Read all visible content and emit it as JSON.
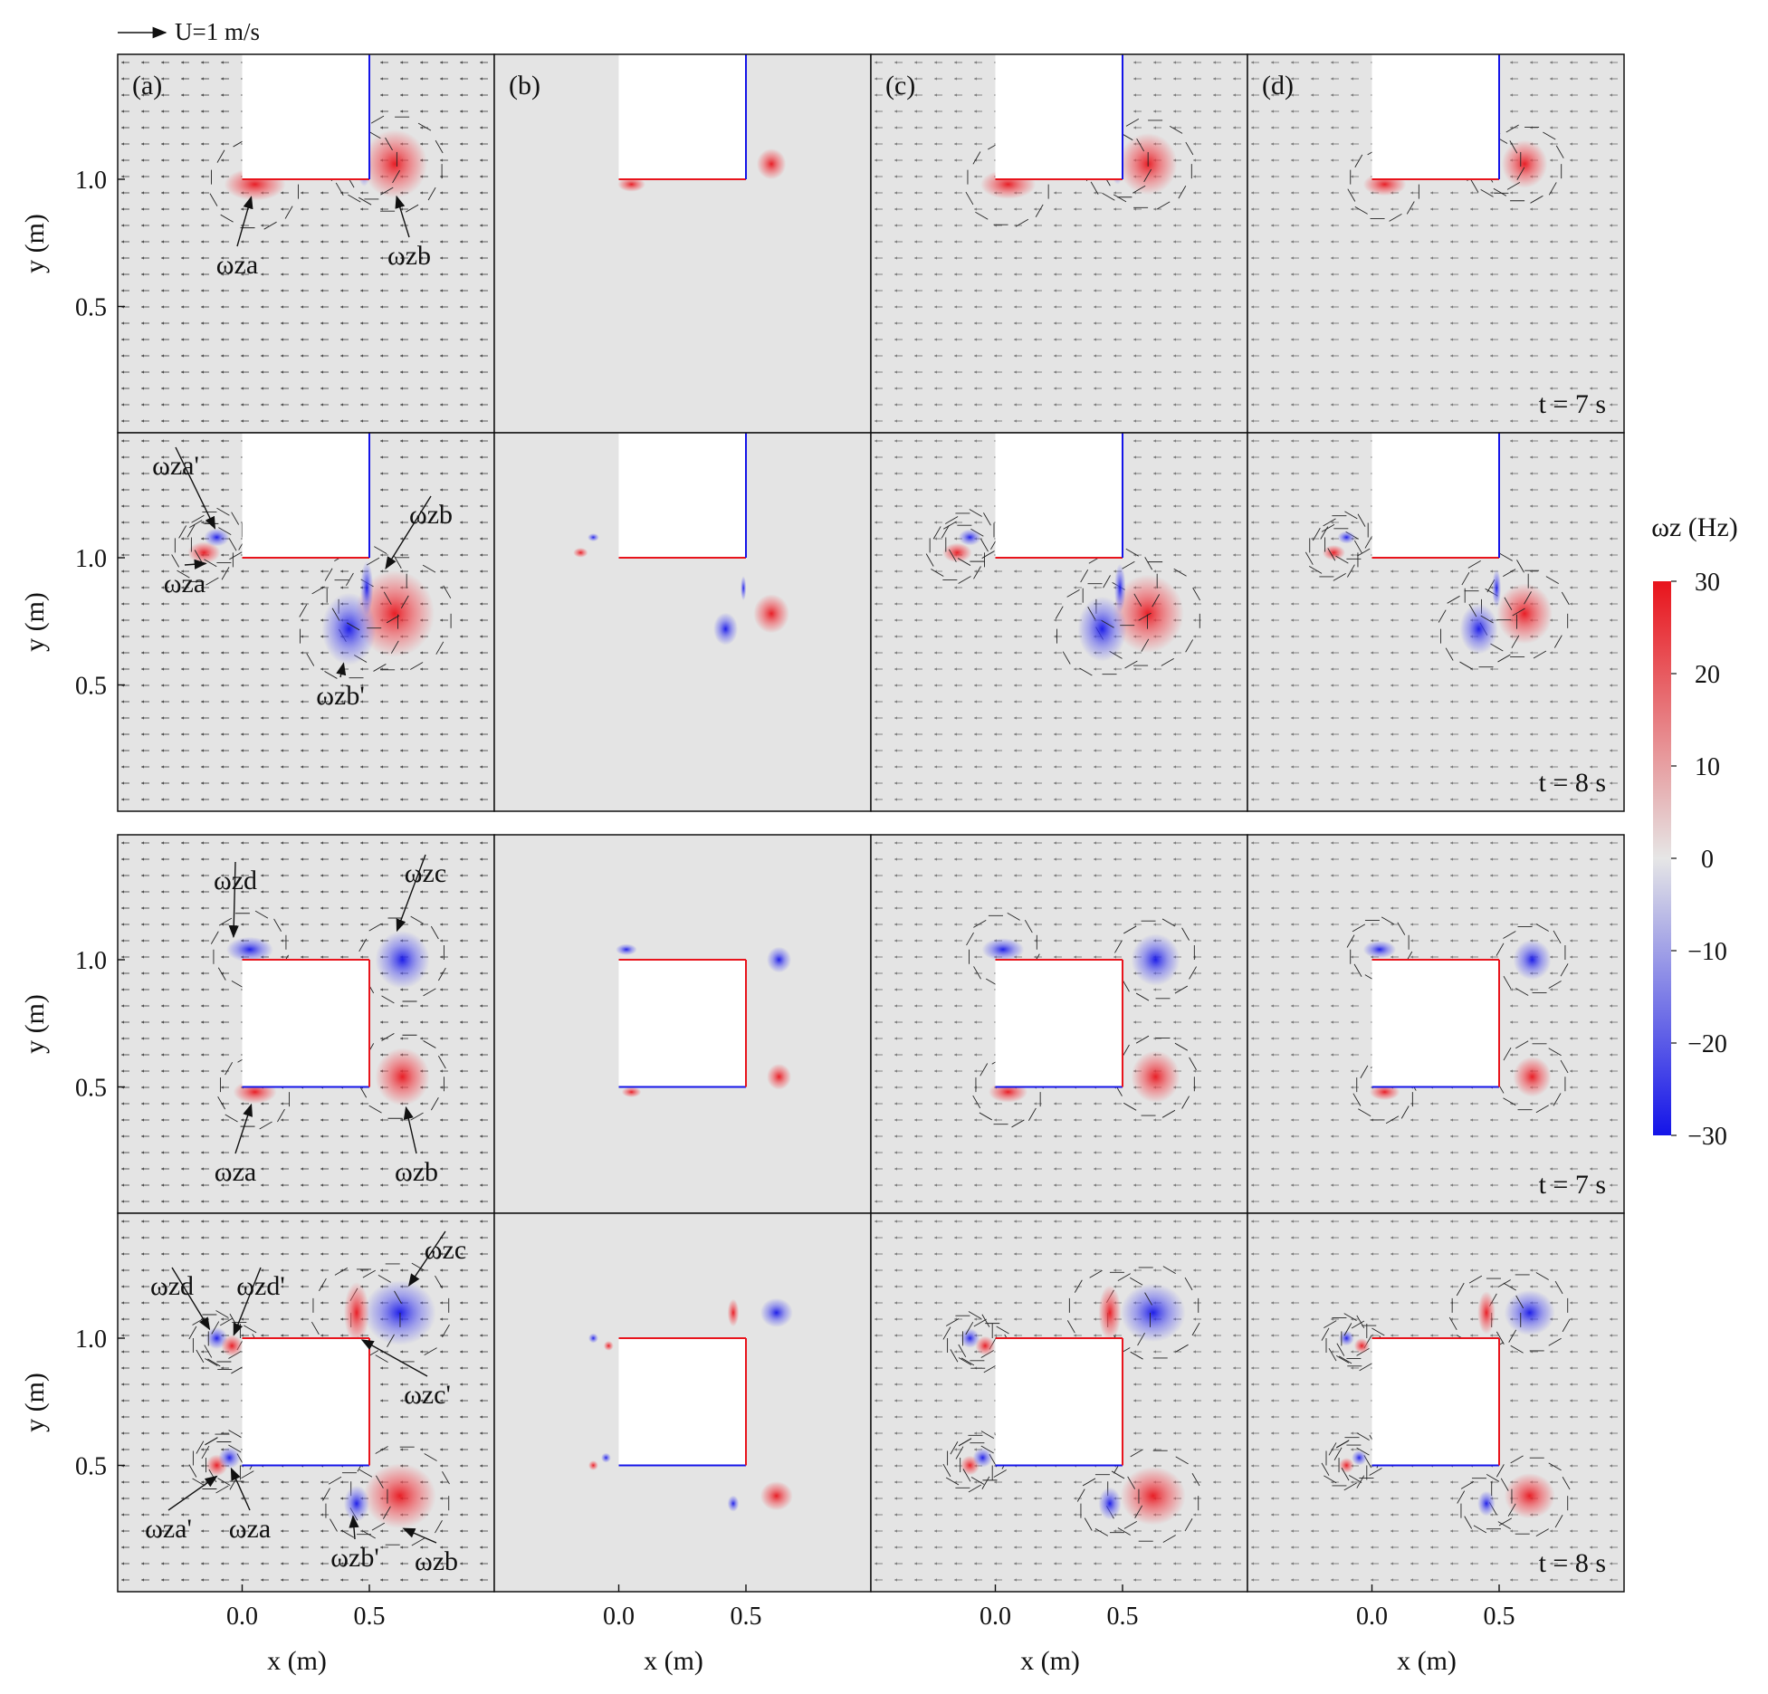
{
  "figure": {
    "scale_arrow_label": "U=1 m/s",
    "panel_labels": [
      "(a)",
      "(b)",
      "(c)",
      "(d)"
    ],
    "x_axis_label": "x (m)",
    "y_axis_label": "y (m)",
    "x_ticks": [
      "0.0",
      "0.5"
    ],
    "y_ticks": [
      "1.0",
      "0.5"
    ],
    "time_labels": [
      "t = 7 s",
      "t = 8 s",
      "t = 7 s",
      "t = 8 s"
    ]
  },
  "vortex_labels": {
    "row1": [
      "ωza",
      "ωzb"
    ],
    "row2": [
      "ωza'",
      "ωza",
      "ωzb",
      "ωzb'"
    ],
    "row3": [
      "ωzd",
      "ωzc",
      "ωza",
      "ωzb"
    ],
    "row4": [
      "ωzd",
      "ωzd'",
      "ωzc",
      "ωzc'",
      "ωza'",
      "ωza",
      "ωzb'",
      "ωzb"
    ]
  },
  "colorbar": {
    "title": "ωz (Hz)",
    "ticks": [
      "30",
      "20",
      "10",
      "0",
      "−10",
      "−20",
      "−30"
    ],
    "max": 30,
    "min": -30,
    "color_max": "#e8141c",
    "color_zero": "#e6e6e6",
    "color_min": "#1414e8"
  },
  "colors": {
    "background_field": "#e4e4e4",
    "positive_vorticity": "#e8141c",
    "negative_vorticity": "#1414e8",
    "arrows": "#222222"
  }
}
